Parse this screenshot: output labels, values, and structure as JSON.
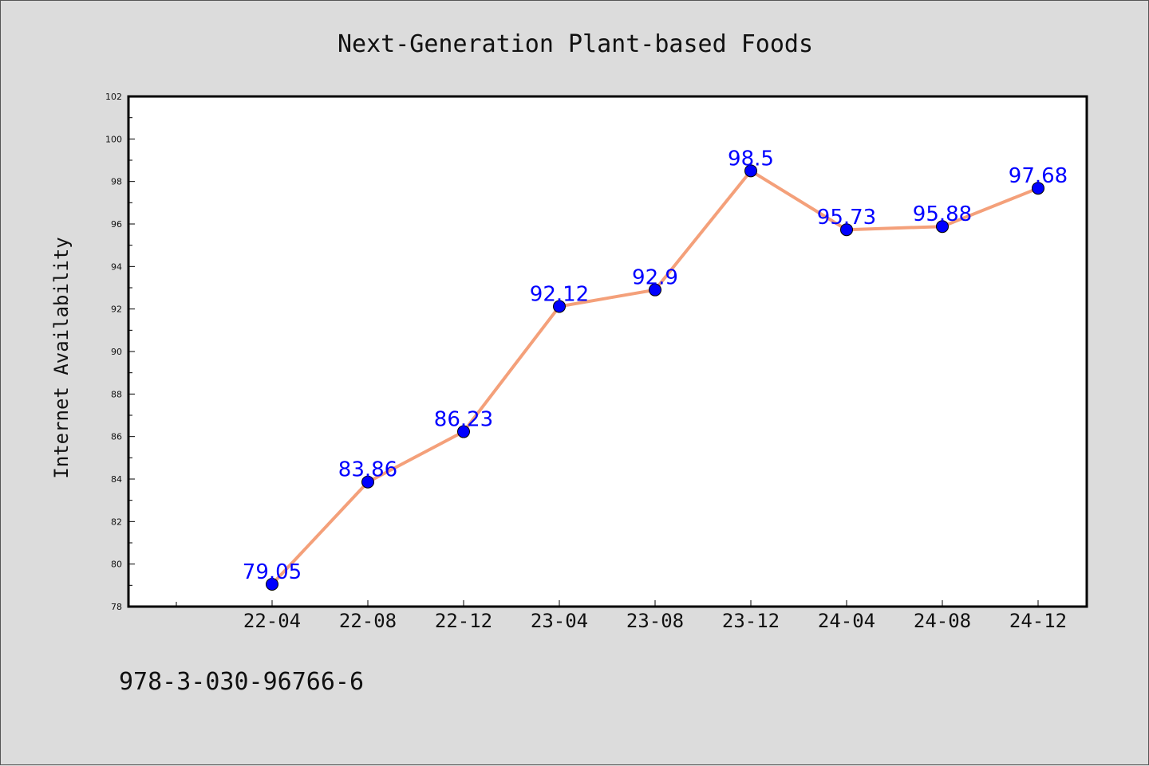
{
  "chart_data": {
    "type": "line",
    "title": "Next-Generation Plant-based Foods",
    "xlabel": "",
    "ylabel": "Internet Availability",
    "categories": [
      "22-04",
      "22-08",
      "22-12",
      "23-04",
      "23-08",
      "23-12",
      "24-04",
      "24-08",
      "24-12"
    ],
    "series": [
      {
        "values": [
          79.05,
          83.86,
          86.23,
          92.12,
          92.9,
          98.5,
          95.73,
          95.88,
          97.68
        ],
        "labels": [
          "79.05",
          "83.86",
          "86.23",
          "92.12",
          "92.9",
          "98.5",
          "95.73",
          "95.88",
          "97.68"
        ],
        "line_color": "#f4a07a",
        "marker_color": "#0000ff"
      }
    ],
    "ylim": [
      78,
      102
    ],
    "yticks": [
      "78",
      "80",
      "82",
      "84",
      "86",
      "88",
      "90",
      "92",
      "94",
      "96",
      "98",
      "100",
      "102"
    ],
    "grid": false,
    "legend": "none"
  },
  "footer": {
    "identifier": "978-3-030-96766-6"
  }
}
